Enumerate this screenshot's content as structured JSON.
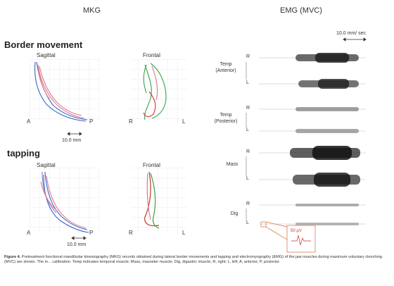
{
  "mkg": {
    "title": "MKG",
    "border_movement": {
      "heading": "Border movement",
      "sagittal": "Sagittal",
      "frontal": "Frontal",
      "left_A": "A",
      "left_P": "P",
      "right_R": "R",
      "right_L": "L",
      "scale": "10.0 mm"
    },
    "tapping": {
      "heading": "tapping",
      "sagittal": "Sagittal",
      "frontal": "Frontal",
      "left_A": "A",
      "left_P": "P",
      "right_R": "R",
      "right_L": "L",
      "scale": "10.0 mm"
    }
  },
  "emg": {
    "title": "EMG (MVC)",
    "time_scale": "10.0 mm/ sec",
    "muscles": [
      {
        "label_line1": "Temp",
        "label_line2": "(Anterior)",
        "side_r": "R",
        "side_l": "L"
      },
      {
        "label_line1": "Temp",
        "label_line2": "(Posterior)",
        "side_r": "R",
        "side_l": "L"
      },
      {
        "label_line1": "Mass",
        "label_line2": "",
        "side_r": "R",
        "side_l": "L"
      },
      {
        "label_line1": "Dig",
        "label_line2": "",
        "side_r": "R",
        "side_l": "L"
      }
    ],
    "calibration": "50 µV"
  },
  "caption": {
    "lead": "Figure 4.",
    "text": "Pretreatment functional mandibular kinesiography (MKG) records obtained during lateral border movements and tapping and electromyography (EMG) of the jaw muscles during maximum voluntary clenching (MVC) are shown. The in... calibration. Temp indicates temporal muscle; Mass, masseter muscle; Dig, digastric muscle; R, right; L, left; A, anterior; P, posterior."
  },
  "colors": {
    "blue": "#3a66c4",
    "pink": "#e07a8c",
    "green": "#3aa14a",
    "red": "#c0392b",
    "calibration_box": "#e08a5a"
  }
}
